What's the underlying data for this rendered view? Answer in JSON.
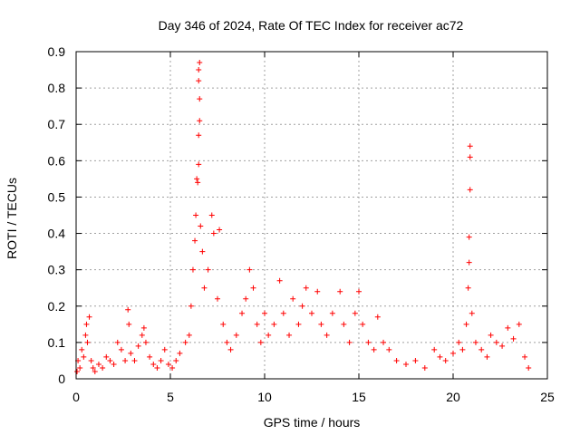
{
  "chart_data": {
    "type": "scatter",
    "title": "Day 346 of 2024, Rate Of TEC Index for receiver ac72",
    "xlabel": "GPS time / hours",
    "ylabel": "ROTI / TECUs",
    "xlim": [
      0,
      25
    ],
    "ylim": [
      0,
      0.9
    ],
    "xticks": [
      0,
      5,
      10,
      15,
      20,
      25
    ],
    "yticks": [
      0,
      0.1,
      0.2,
      0.3,
      0.4,
      0.5,
      0.6,
      0.7,
      0.8,
      0.9
    ],
    "grid": true,
    "marker": "+",
    "colors": {
      "series": "#ff0000",
      "grid": "#a0a0a0",
      "axis": "#000000"
    },
    "series": [
      {
        "points": [
          [
            0.05,
            0.02
          ],
          [
            0.1,
            0.05
          ],
          [
            0.2,
            0.03
          ],
          [
            0.3,
            0.08
          ],
          [
            0.4,
            0.06
          ],
          [
            0.5,
            0.12
          ],
          [
            0.55,
            0.15
          ],
          [
            0.6,
            0.1
          ],
          [
            0.7,
            0.17
          ],
          [
            0.8,
            0.05
          ],
          [
            0.9,
            0.03
          ],
          [
            1.0,
            0.02
          ],
          [
            1.2,
            0.04
          ],
          [
            1.4,
            0.03
          ],
          [
            1.6,
            0.06
          ],
          [
            1.8,
            0.05
          ],
          [
            2.0,
            0.04
          ],
          [
            2.2,
            0.1
          ],
          [
            2.4,
            0.08
          ],
          [
            2.6,
            0.05
          ],
          [
            2.75,
            0.19
          ],
          [
            2.8,
            0.15
          ],
          [
            2.9,
            0.07
          ],
          [
            3.1,
            0.05
          ],
          [
            3.3,
            0.09
          ],
          [
            3.5,
            0.12
          ],
          [
            3.6,
            0.14
          ],
          [
            3.7,
            0.1
          ],
          [
            3.9,
            0.06
          ],
          [
            4.1,
            0.04
          ],
          [
            4.3,
            0.03
          ],
          [
            4.5,
            0.05
          ],
          [
            4.7,
            0.08
          ],
          [
            4.9,
            0.04
          ],
          [
            5.1,
            0.03
          ],
          [
            5.3,
            0.05
          ],
          [
            5.5,
            0.07
          ],
          [
            5.8,
            0.1
          ],
          [
            6.0,
            0.12
          ],
          [
            6.1,
            0.2
          ],
          [
            6.2,
            0.3
          ],
          [
            6.3,
            0.38
          ],
          [
            6.35,
            0.45
          ],
          [
            6.4,
            0.55
          ],
          [
            6.45,
            0.54
          ],
          [
            6.5,
            0.59
          ],
          [
            6.5,
            0.67
          ],
          [
            6.55,
            0.71
          ],
          [
            6.55,
            0.77
          ],
          [
            6.5,
            0.82
          ],
          [
            6.5,
            0.85
          ],
          [
            6.55,
            0.87
          ],
          [
            6.6,
            0.42
          ],
          [
            6.7,
            0.35
          ],
          [
            6.8,
            0.25
          ],
          [
            7.0,
            0.3
          ],
          [
            7.2,
            0.45
          ],
          [
            7.3,
            0.4
          ],
          [
            7.5,
            0.22
          ],
          [
            7.6,
            0.41
          ],
          [
            7.8,
            0.15
          ],
          [
            8.0,
            0.1
          ],
          [
            8.2,
            0.08
          ],
          [
            8.5,
            0.12
          ],
          [
            8.8,
            0.18
          ],
          [
            9.0,
            0.22
          ],
          [
            9.2,
            0.3
          ],
          [
            9.4,
            0.25
          ],
          [
            9.6,
            0.15
          ],
          [
            9.8,
            0.1
          ],
          [
            10.0,
            0.18
          ],
          [
            10.2,
            0.12
          ],
          [
            10.5,
            0.15
          ],
          [
            10.8,
            0.27
          ],
          [
            11.0,
            0.18
          ],
          [
            11.3,
            0.12
          ],
          [
            11.5,
            0.22
          ],
          [
            11.8,
            0.15
          ],
          [
            12.0,
            0.2
          ],
          [
            12.2,
            0.25
          ],
          [
            12.5,
            0.18
          ],
          [
            12.8,
            0.24
          ],
          [
            13.0,
            0.15
          ],
          [
            13.3,
            0.12
          ],
          [
            13.6,
            0.18
          ],
          [
            14.0,
            0.24
          ],
          [
            14.2,
            0.15
          ],
          [
            14.5,
            0.1
          ],
          [
            14.8,
            0.18
          ],
          [
            15.0,
            0.24
          ],
          [
            15.2,
            0.15
          ],
          [
            15.5,
            0.1
          ],
          [
            15.8,
            0.08
          ],
          [
            16.0,
            0.17
          ],
          [
            16.3,
            0.1
          ],
          [
            16.6,
            0.08
          ],
          [
            17.0,
            0.05
          ],
          [
            17.5,
            0.04
          ],
          [
            18.0,
            0.05
          ],
          [
            18.5,
            0.03
          ],
          [
            19.0,
            0.08
          ],
          [
            19.3,
            0.06
          ],
          [
            19.6,
            0.05
          ],
          [
            20.0,
            0.07
          ],
          [
            20.3,
            0.1
          ],
          [
            20.5,
            0.08
          ],
          [
            20.7,
            0.15
          ],
          [
            20.8,
            0.25
          ],
          [
            20.85,
            0.32
          ],
          [
            20.85,
            0.39
          ],
          [
            20.9,
            0.52
          ],
          [
            20.9,
            0.61
          ],
          [
            20.9,
            0.64
          ],
          [
            21.0,
            0.18
          ],
          [
            21.2,
            0.1
          ],
          [
            21.5,
            0.08
          ],
          [
            21.8,
            0.06
          ],
          [
            22.0,
            0.12
          ],
          [
            22.3,
            0.1
          ],
          [
            22.6,
            0.09
          ],
          [
            22.9,
            0.14
          ],
          [
            23.2,
            0.11
          ],
          [
            23.5,
            0.15
          ],
          [
            23.8,
            0.06
          ],
          [
            24.0,
            0.03
          ]
        ]
      }
    ]
  }
}
